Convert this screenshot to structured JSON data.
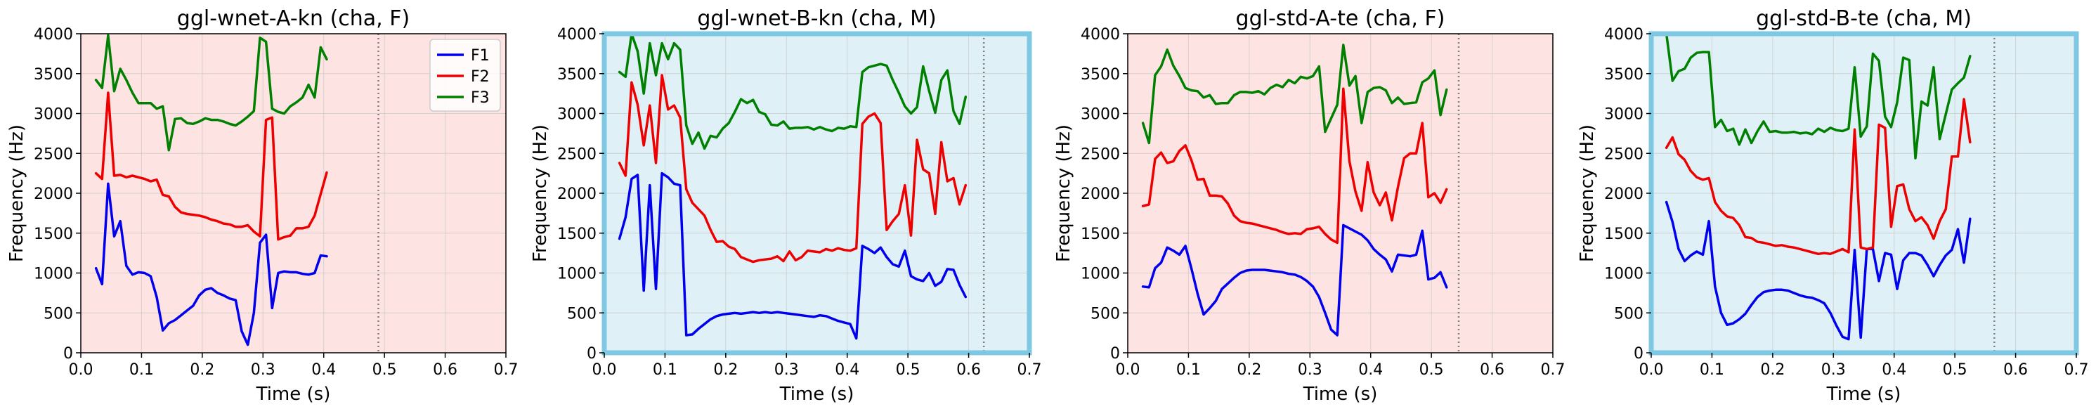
{
  "figure": {
    "background": "#ffffff"
  },
  "chart_data": [
    {
      "type": "line",
      "title": "ggl-wnet-A-kn (cha, F)",
      "xlabel": "Time (s)",
      "ylabel": "Frequency (Hz)",
      "xlim": [
        0,
        0.7
      ],
      "ylim": [
        0,
        4000
      ],
      "xticks": [
        "0.0",
        "0.1",
        "0.2",
        "0.3",
        "0.4",
        "0.5",
        "0.6",
        "0.7"
      ],
      "yticks": [
        "0",
        "500",
        "1000",
        "1500",
        "2000",
        "2500",
        "3000",
        "3500",
        "4000"
      ],
      "grid": true,
      "background": "#fde3e1",
      "highlight_border": false,
      "vline_x": 0.49,
      "legend": {
        "position": "top-right",
        "entries": [
          "F1",
          "F2",
          "F3"
        ]
      },
      "x": [
        0.025,
        0.035,
        0.045,
        0.055,
        0.065,
        0.075,
        0.085,
        0.095,
        0.105,
        0.115,
        0.125,
        0.135,
        0.145,
        0.155,
        0.165,
        0.175,
        0.185,
        0.195,
        0.205,
        0.215,
        0.225,
        0.235,
        0.245,
        0.255,
        0.265,
        0.275,
        0.285,
        0.295,
        0.305,
        0.315,
        0.325,
        0.335,
        0.345,
        0.355,
        0.365,
        0.375,
        0.385,
        0.395,
        0.405
      ],
      "series": [
        {
          "name": "F1",
          "color": "#0000ee",
          "values": [
            1060,
            860,
            2120,
            1460,
            1650,
            1090,
            980,
            1010,
            1000,
            960,
            700,
            280,
            370,
            410,
            470,
            530,
            590,
            720,
            790,
            810,
            750,
            720,
            680,
            660,
            270,
            100,
            500,
            1380,
            1480,
            560,
            1000,
            1020,
            1010,
            1010,
            990,
            980,
            1000,
            1220,
            1210
          ]
        },
        {
          "name": "F2",
          "color": "#ee0000",
          "values": [
            2250,
            2180,
            3260,
            2220,
            2230,
            2200,
            2220,
            2200,
            2180,
            2150,
            2170,
            1980,
            1960,
            1830,
            1760,
            1740,
            1730,
            1720,
            1700,
            1670,
            1650,
            1620,
            1610,
            1580,
            1580,
            1600,
            1520,
            1460,
            2920,
            2950,
            1420,
            1450,
            1470,
            1560,
            1560,
            1580,
            1720,
            1990,
            2260
          ]
        },
        {
          "name": "F3",
          "color": "#008000",
          "values": [
            3420,
            3320,
            3980,
            3280,
            3560,
            3420,
            3260,
            3130,
            3130,
            3130,
            3060,
            3090,
            2540,
            2930,
            2940,
            2880,
            2870,
            2900,
            2940,
            2920,
            2920,
            2900,
            2870,
            2850,
            2900,
            2960,
            3030,
            3950,
            3900,
            3060,
            3020,
            3000,
            3090,
            3140,
            3200,
            3360,
            3200,
            3830,
            3680
          ]
        }
      ]
    },
    {
      "type": "line",
      "title": "ggl-wnet-B-kn (cha, M)",
      "xlabel": "Time (s)",
      "ylabel": "Frequency (Hz)",
      "xlim": [
        0,
        0.7
      ],
      "ylim": [
        0,
        4000
      ],
      "xticks": [
        "0.0",
        "0.1",
        "0.2",
        "0.3",
        "0.4",
        "0.5",
        "0.6",
        "0.7"
      ],
      "yticks": [
        "0",
        "500",
        "1000",
        "1500",
        "2000",
        "2500",
        "3000",
        "3500",
        "4000"
      ],
      "grid": true,
      "background": "#dff0f6",
      "highlight_border": true,
      "border_color": "#7ec8e3",
      "vline_x": 0.625,
      "x": [
        0.025,
        0.035,
        0.045,
        0.055,
        0.065,
        0.075,
        0.085,
        0.095,
        0.105,
        0.115,
        0.125,
        0.135,
        0.145,
        0.155,
        0.165,
        0.175,
        0.185,
        0.195,
        0.205,
        0.215,
        0.225,
        0.235,
        0.245,
        0.255,
        0.265,
        0.275,
        0.285,
        0.295,
        0.305,
        0.315,
        0.325,
        0.335,
        0.345,
        0.355,
        0.365,
        0.375,
        0.385,
        0.395,
        0.405,
        0.415,
        0.425,
        0.435,
        0.445,
        0.455,
        0.465,
        0.475,
        0.485,
        0.495,
        0.505,
        0.515,
        0.525,
        0.535,
        0.545,
        0.555,
        0.565,
        0.575,
        0.585,
        0.595
      ],
      "series": [
        {
          "name": "F1",
          "color": "#0000ee",
          "values": [
            1430,
            1700,
            2180,
            2230,
            780,
            2100,
            800,
            2250,
            2200,
            2120,
            2100,
            220,
            230,
            300,
            360,
            420,
            460,
            480,
            490,
            500,
            490,
            500,
            510,
            500,
            510,
            500,
            510,
            500,
            490,
            480,
            470,
            460,
            450,
            470,
            460,
            430,
            400,
            380,
            360,
            180,
            1340,
            1300,
            1250,
            1320,
            1200,
            1110,
            1080,
            1280,
            960,
            920,
            900,
            1000,
            840,
            890,
            1050,
            1040,
            850,
            700
          ]
        },
        {
          "name": "F2",
          "color": "#ee0000",
          "values": [
            2380,
            2220,
            3390,
            3110,
            2600,
            3100,
            2380,
            3480,
            3050,
            3100,
            2950,
            2050,
            1880,
            1800,
            1720,
            1540,
            1390,
            1400,
            1330,
            1300,
            1200,
            1170,
            1140,
            1160,
            1170,
            1180,
            1210,
            1150,
            1270,
            1160,
            1200,
            1280,
            1270,
            1260,
            1300,
            1280,
            1310,
            1290,
            1280,
            1310,
            2870,
            2960,
            3000,
            2880,
            1540,
            1650,
            1740,
            2100,
            1470,
            2670,
            2300,
            2250,
            1740,
            2640,
            2150,
            2190,
            1860,
            2100
          ]
        },
        {
          "name": "F3",
          "color": "#008000",
          "values": [
            3520,
            3460,
            4000,
            3780,
            3250,
            3880,
            3480,
            3880,
            3680,
            3880,
            3800,
            2850,
            2620,
            2760,
            2560,
            2720,
            2700,
            2810,
            2880,
            3020,
            3180,
            3130,
            3170,
            3020,
            2990,
            2860,
            2850,
            2900,
            2810,
            2820,
            2820,
            2830,
            2800,
            2830,
            2800,
            2780,
            2820,
            2810,
            2840,
            2830,
            3520,
            3580,
            3600,
            3620,
            3600,
            3420,
            3260,
            3090,
            3000,
            3080,
            3590,
            3280,
            3010,
            3420,
            3540,
            3030,
            2870,
            3210
          ]
        }
      ]
    },
    {
      "type": "line",
      "title": "ggl-std-A-te (cha, F)",
      "xlabel": "Time (s)",
      "ylabel": "Frequency (Hz)",
      "xlim": [
        0,
        0.7
      ],
      "ylim": [
        0,
        4000
      ],
      "xticks": [
        "0.0",
        "0.1",
        "0.2",
        "0.3",
        "0.4",
        "0.5",
        "0.6",
        "0.7"
      ],
      "yticks": [
        "0",
        "500",
        "1000",
        "1500",
        "2000",
        "2500",
        "3000",
        "3500",
        "4000"
      ],
      "grid": true,
      "background": "#fde3e1",
      "highlight_border": false,
      "vline_x": 0.545,
      "x": [
        0.025,
        0.035,
        0.045,
        0.055,
        0.065,
        0.075,
        0.085,
        0.095,
        0.105,
        0.115,
        0.125,
        0.135,
        0.145,
        0.155,
        0.165,
        0.175,
        0.185,
        0.195,
        0.205,
        0.215,
        0.225,
        0.235,
        0.245,
        0.255,
        0.265,
        0.275,
        0.285,
        0.295,
        0.305,
        0.315,
        0.325,
        0.335,
        0.345,
        0.355,
        0.365,
        0.375,
        0.385,
        0.395,
        0.405,
        0.415,
        0.425,
        0.435,
        0.445,
        0.455,
        0.465,
        0.475,
        0.485,
        0.495,
        0.505,
        0.515,
        0.525
      ],
      "series": [
        {
          "name": "F1",
          "color": "#0000ee",
          "values": [
            830,
            820,
            1060,
            1130,
            1320,
            1280,
            1230,
            1340,
            1050,
            740,
            480,
            560,
            650,
            800,
            870,
            940,
            1000,
            1030,
            1040,
            1040,
            1040,
            1030,
            1020,
            1010,
            990,
            980,
            950,
            900,
            830,
            700,
            500,
            290,
            220,
            1600,
            1560,
            1520,
            1480,
            1410,
            1300,
            1230,
            1170,
            1020,
            1230,
            1220,
            1210,
            1230,
            1530,
            920,
            940,
            1010,
            820
          ]
        },
        {
          "name": "F2",
          "color": "#ee0000",
          "values": [
            1840,
            1860,
            2430,
            2510,
            2380,
            2400,
            2530,
            2600,
            2410,
            2170,
            2180,
            1970,
            1970,
            1960,
            1870,
            1720,
            1650,
            1630,
            1620,
            1600,
            1580,
            1560,
            1540,
            1510,
            1490,
            1500,
            1490,
            1550,
            1560,
            1580,
            1490,
            1420,
            1380,
            3310,
            2400,
            2020,
            1780,
            2390,
            2010,
            1850,
            2010,
            1660,
            2080,
            2440,
            2500,
            2500,
            2880,
            1950,
            2000,
            1880,
            2050
          ]
        },
        {
          "name": "F3",
          "color": "#008000",
          "values": [
            2880,
            2630,
            3480,
            3590,
            3800,
            3600,
            3470,
            3320,
            3290,
            3280,
            3200,
            3230,
            3120,
            3130,
            3130,
            3230,
            3270,
            3270,
            3260,
            3280,
            3240,
            3320,
            3360,
            3330,
            3420,
            3380,
            3460,
            3440,
            3470,
            3590,
            2770,
            2940,
            3110,
            3860,
            3350,
            3470,
            2880,
            3270,
            3320,
            3330,
            3290,
            3130,
            3200,
            3120,
            3130,
            3140,
            3390,
            3440,
            3540,
            2980,
            3300
          ]
        }
      ]
    },
    {
      "type": "line",
      "title": "ggl-std-B-te (cha, M)",
      "xlabel": "Time (s)",
      "ylabel": "Frequency (Hz)",
      "xlim": [
        0,
        0.7
      ],
      "ylim": [
        0,
        4000
      ],
      "xticks": [
        "0.0",
        "0.1",
        "0.2",
        "0.3",
        "0.4",
        "0.5",
        "0.6",
        "0.7"
      ],
      "yticks": [
        "0",
        "500",
        "1000",
        "1500",
        "2000",
        "2500",
        "3000",
        "3500",
        "4000"
      ],
      "grid": true,
      "background": "#dff0f6",
      "highlight_border": true,
      "border_color": "#7ec8e3",
      "vline_x": 0.565,
      "x": [
        0.025,
        0.035,
        0.045,
        0.055,
        0.065,
        0.075,
        0.085,
        0.095,
        0.105,
        0.115,
        0.125,
        0.135,
        0.145,
        0.155,
        0.165,
        0.175,
        0.185,
        0.195,
        0.205,
        0.215,
        0.225,
        0.235,
        0.245,
        0.255,
        0.265,
        0.275,
        0.285,
        0.295,
        0.305,
        0.315,
        0.325,
        0.335,
        0.345,
        0.355,
        0.365,
        0.375,
        0.385,
        0.395,
        0.405,
        0.415,
        0.425,
        0.435,
        0.445,
        0.455,
        0.465,
        0.475,
        0.485,
        0.495,
        0.505,
        0.515,
        0.525
      ],
      "series": [
        {
          "name": "F1",
          "color": "#0000ee",
          "values": [
            1890,
            1640,
            1300,
            1150,
            1220,
            1270,
            1230,
            1650,
            830,
            500,
            350,
            370,
            420,
            490,
            600,
            700,
            760,
            780,
            790,
            790,
            780,
            750,
            720,
            700,
            690,
            660,
            620,
            500,
            340,
            200,
            170,
            1290,
            190,
            1300,
            1300,
            900,
            1250,
            1230,
            800,
            1160,
            1250,
            1250,
            1220,
            1100,
            960,
            1100,
            1220,
            1290,
            1550,
            1130,
            1680
          ]
        },
        {
          "name": "F2",
          "color": "#ee0000",
          "values": [
            2570,
            2700,
            2490,
            2420,
            2280,
            2200,
            2170,
            2190,
            1890,
            1780,
            1710,
            1690,
            1600,
            1450,
            1440,
            1390,
            1380,
            1360,
            1340,
            1350,
            1330,
            1320,
            1300,
            1280,
            1260,
            1240,
            1250,
            1240,
            1270,
            1300,
            1260,
            2800,
            1320,
            1300,
            1320,
            2860,
            2820,
            1580,
            2090,
            2110,
            1800,
            1650,
            1700,
            1600,
            1430,
            1650,
            1800,
            2460,
            2460,
            3180,
            2640
          ]
        },
        {
          "name": "F3",
          "color": "#008000",
          "values": [
            4000,
            3410,
            3530,
            3560,
            3700,
            3760,
            3770,
            3770,
            2830,
            2920,
            2780,
            2810,
            2610,
            2800,
            2630,
            2780,
            2900,
            2770,
            2780,
            2760,
            2760,
            2770,
            2750,
            2760,
            2740,
            2810,
            2770,
            2820,
            2790,
            2780,
            2810,
            3580,
            2710,
            2840,
            3750,
            3660,
            2960,
            2830,
            3140,
            3700,
            3670,
            2440,
            3150,
            3100,
            3580,
            2680,
            2990,
            3300,
            3380,
            3450,
            3720
          ]
        }
      ]
    }
  ]
}
